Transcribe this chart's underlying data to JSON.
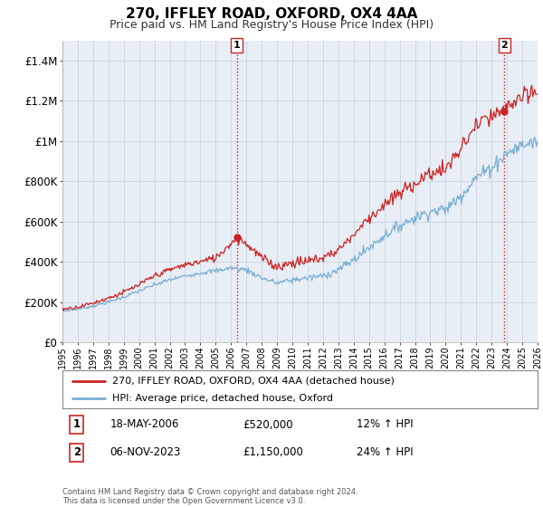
{
  "title": "270, IFFLEY ROAD, OXFORD, OX4 4AA",
  "subtitle": "Price paid vs. HM Land Registry's House Price Index (HPI)",
  "line1_label": "270, IFFLEY ROAD, OXFORD, OX4 4AA (detached house)",
  "line2_label": "HPI: Average price, detached house, Oxford",
  "line1_color": "#cc2222",
  "line2_color": "#7aafd4",
  "vline_color": "#cc2222",
  "chart_bg": "#e8eef5",
  "sale1_year": 2006.38,
  "sale1_price": 520000,
  "sale1_text": "18-MAY-2006",
  "sale1_hpi": "12% ↑ HPI",
  "sale2_year": 2023.84,
  "sale2_price": 1150000,
  "sale2_text": "06-NOV-2023",
  "sale2_hpi": "24% ↑ HPI",
  "ylim": [
    0,
    1500000
  ],
  "xlim_start": 1995,
  "xlim_end": 2026,
  "footnote": "Contains HM Land Registry data © Crown copyright and database right 2024.\nThis data is licensed under the Open Government Licence v3.0.",
  "background_color": "#ffffff",
  "grid_color": "#c8d4e0"
}
